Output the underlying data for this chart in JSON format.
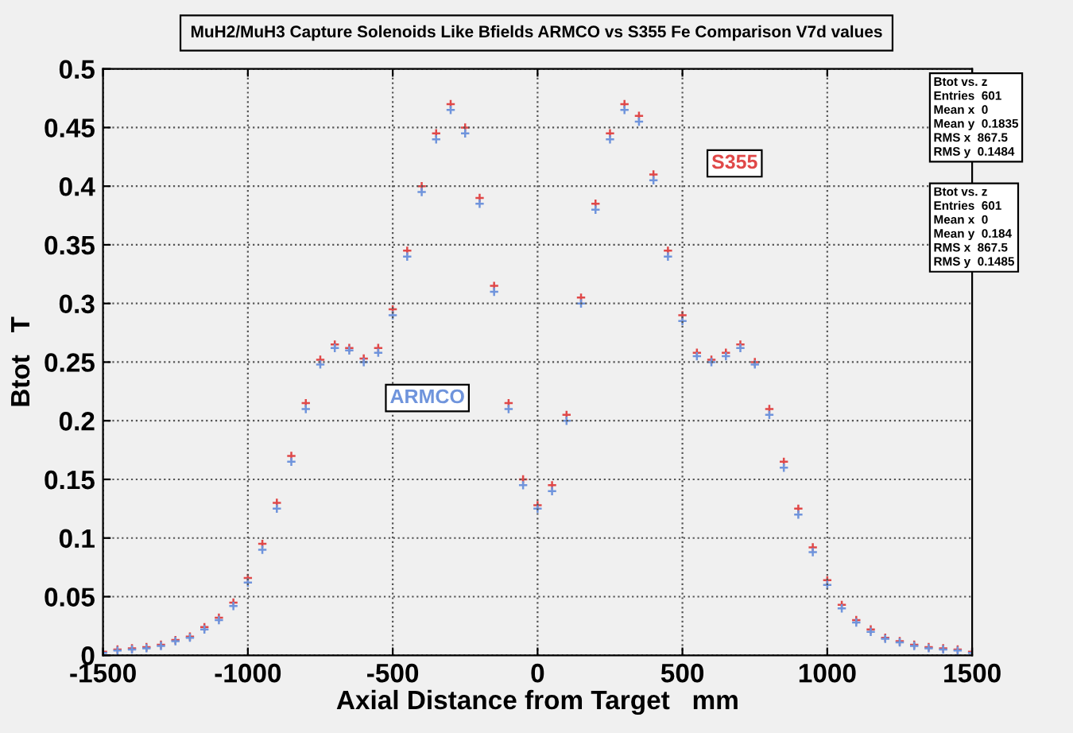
{
  "chart_data": {
    "type": "scatter",
    "title": "MuH2/MuH3 Capture Solenoids Like Bfields ARMCO vs S355 Fe Comparison V7d values",
    "xlabel": "Axial Distance from Target   mm",
    "ylabel": "Btot   T",
    "xlim": [
      -1500,
      1500
    ],
    "xticks": [
      -1500,
      -1000,
      -500,
      0,
      500,
      1000,
      1500
    ],
    "ylim": [
      0,
      0.5
    ],
    "yticks": [
      0,
      0.05,
      0.1,
      0.15,
      0.2,
      0.25,
      0.3,
      0.35,
      0.4,
      0.45,
      0.5
    ],
    "grid": true,
    "legend": false,
    "marker": "cross",
    "x": [
      -1500,
      -1450,
      -1400,
      -1350,
      -1300,
      -1250,
      -1200,
      -1150,
      -1100,
      -1050,
      -1000,
      -950,
      -900,
      -850,
      -800,
      -750,
      -700,
      -650,
      -600,
      -550,
      -500,
      -450,
      -400,
      -350,
      -300,
      -250,
      -200,
      -150,
      -100,
      -50,
      0,
      50,
      100,
      150,
      200,
      250,
      300,
      350,
      400,
      450,
      500,
      550,
      600,
      650,
      700,
      750,
      800,
      850,
      900,
      950,
      1000,
      1050,
      1100,
      1150,
      1200,
      1250,
      1300,
      1350,
      1400,
      1450,
      1500
    ],
    "series": [
      {
        "name": "S355",
        "color": "#e04848",
        "values": [
          0.003,
          0.005,
          0.006,
          0.007,
          0.009,
          0.013,
          0.016,
          0.024,
          0.032,
          0.045,
          0.066,
          0.095,
          0.13,
          0.17,
          0.215,
          0.252,
          0.265,
          0.262,
          0.253,
          0.262,
          0.295,
          0.345,
          0.4,
          0.445,
          0.47,
          0.45,
          0.39,
          0.315,
          0.215,
          0.15,
          0.128,
          0.145,
          0.205,
          0.305,
          0.385,
          0.445,
          0.47,
          0.46,
          0.41,
          0.345,
          0.29,
          0.258,
          0.252,
          0.258,
          0.265,
          0.25,
          0.21,
          0.165,
          0.125,
          0.092,
          0.064,
          0.043,
          0.03,
          0.022,
          0.015,
          0.012,
          0.009,
          0.007,
          0.006,
          0.005,
          0.003
        ]
      },
      {
        "name": "ARMCO",
        "color": "#6f94dc",
        "values": [
          0.002,
          0.004,
          0.005,
          0.006,
          0.008,
          0.012,
          0.015,
          0.022,
          0.03,
          0.042,
          0.062,
          0.09,
          0.125,
          0.165,
          0.21,
          0.248,
          0.262,
          0.26,
          0.25,
          0.258,
          0.29,
          0.34,
          0.395,
          0.44,
          0.465,
          0.445,
          0.385,
          0.31,
          0.21,
          0.145,
          0.125,
          0.14,
          0.2,
          0.3,
          0.38,
          0.44,
          0.465,
          0.455,
          0.405,
          0.34,
          0.285,
          0.255,
          0.25,
          0.255,
          0.262,
          0.248,
          0.205,
          0.16,
          0.12,
          0.088,
          0.06,
          0.04,
          0.028,
          0.02,
          0.014,
          0.011,
          0.008,
          0.006,
          0.005,
          0.004,
          0.002
        ]
      }
    ],
    "annotations": [
      "Btot vs. z\nEntries  601\nMean x  0\nMean y  0.1835\nRMS x  867.5\nRMS y  0.1484",
      "Btot vs. z\nEntries  601\nMean x  0\nMean y  0.184\nRMS x  867.5\nRMS y  0.1485"
    ]
  }
}
